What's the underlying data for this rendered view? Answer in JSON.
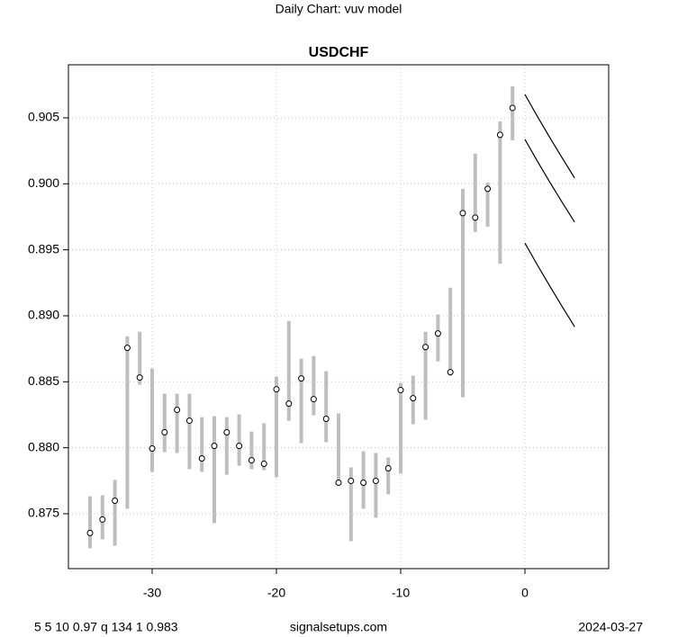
{
  "chart_data": {
    "type": "range",
    "suptitle": "Daily Chart: vuv model",
    "title": "USDCHF",
    "x": [
      -35,
      -34,
      -33,
      -32,
      -31,
      -30,
      -29,
      -28,
      -27,
      -26,
      -25,
      -24,
      -23,
      -22,
      -21,
      -20,
      -19,
      -18,
      -17,
      -16,
      -15,
      -14,
      -13,
      -12,
      -11,
      -10,
      -9,
      -8,
      -7,
      -6,
      -5,
      -4,
      -3,
      -2,
      -1
    ],
    "high": [
      0.87632,
      0.8764,
      0.87756,
      0.88845,
      0.88879,
      0.886,
      0.88409,
      0.88409,
      0.88409,
      0.88232,
      0.88239,
      0.88232,
      0.88253,
      0.88123,
      0.88185,
      0.88539,
      0.88961,
      0.88675,
      0.88695,
      0.8858,
      0.8826,
      0.87851,
      0.87974,
      0.8796,
      0.87926,
      0.88491,
      0.88546,
      0.88879,
      0.89009,
      0.89213,
      0.89962,
      0.90228,
      0.9001,
      0.90473,
      0.90738
    ],
    "low": [
      0.87238,
      0.87306,
      0.87258,
      0.87538,
      0.88477,
      0.87817,
      0.87967,
      0.8796,
      0.87837,
      0.87817,
      0.87429,
      0.87796,
      0.87864,
      0.87837,
      0.8783,
      0.87776,
      0.88205,
      0.88035,
      0.88246,
      0.88042,
      0.87728,
      0.87292,
      0.87538,
      0.8747,
      0.87647,
      0.87803,
      0.88178,
      0.88212,
      0.88654,
      0.88546,
      0.88382,
      0.89635,
      0.89676,
      0.89394,
      0.9033
    ],
    "close": [
      0.87354,
      0.87456,
      0.87599,
      0.88757,
      0.88532,
      0.87994,
      0.88117,
      0.88287,
      0.88205,
      0.87919,
      0.88014,
      0.88117,
      0.88014,
      0.87905,
      0.87878,
      0.88443,
      0.88334,
      0.88525,
      0.88368,
      0.88219,
      0.87735,
      0.87749,
      0.87735,
      0.87749,
      0.87844,
      0.88437,
      0.88375,
      0.88763,
      0.88866,
      0.88573,
      0.89778,
      0.89744,
      0.89962,
      0.90371,
      0.90575
    ],
    "bar_color": "#bebebe",
    "forecast": [
      {
        "x": [
          0,
          1,
          2,
          3,
          4
        ],
        "values": [
          0.90677,
          0.90511,
          0.90351,
          0.90196,
          0.90044
        ],
        "color": "#000000"
      },
      {
        "x": [
          0,
          1,
          2,
          3,
          4
        ],
        "values": [
          0.90337,
          0.90172,
          0.90013,
          0.89859,
          0.8971
        ],
        "color": "#000000"
      },
      {
        "x": [
          0,
          1,
          2,
          3,
          4
        ],
        "values": [
          0.89551,
          0.89385,
          0.89225,
          0.89069,
          0.88917
        ],
        "color": "#000000"
      }
    ],
    "xlim": [
      -36.74,
      6.74
    ],
    "ylim": [
      0.87084,
      0.90902
    ],
    "xticks": [
      -30,
      -20,
      -10,
      0
    ],
    "yticks": [
      0.875,
      {
        "value": 0.88,
        "label": "0.880"
      },
      0.885,
      {
        "value": 0.89,
        "label": "0.890"
      },
      0.895,
      {
        "value": 0.9,
        "label": "0.900"
      },
      0.905
    ],
    "grid": true,
    "footer_left": "5 5 10 0.97 q 134 1 0.983",
    "footer_center": "signalsetups.com",
    "footer_right": "2024-03-27"
  }
}
